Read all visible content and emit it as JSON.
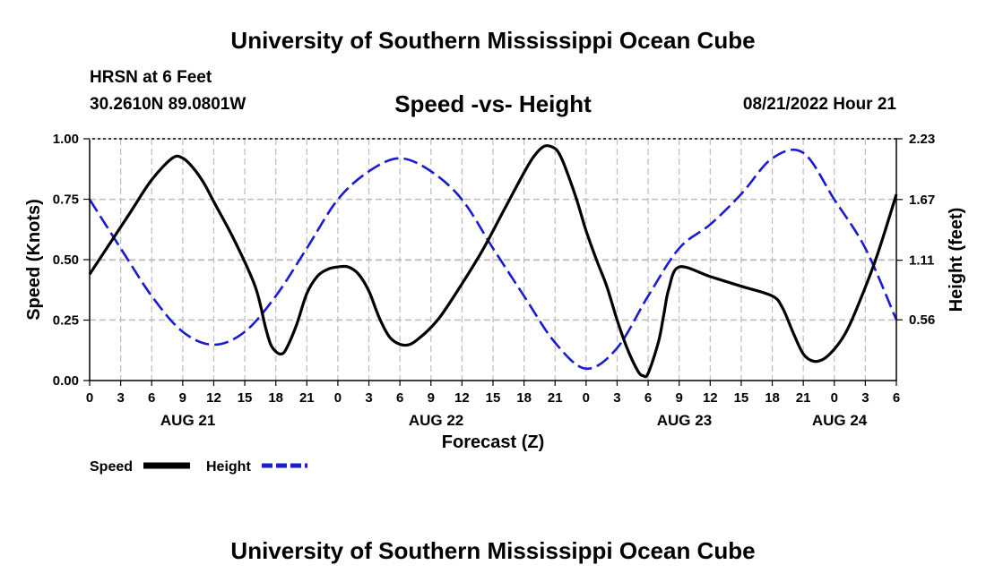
{
  "header": {
    "title": "University of Southern Mississippi Ocean Cube",
    "station": "HRSN at 6 Feet",
    "coords": "30.2610N  89.0801W",
    "subtitle": "Speed -vs- Height",
    "datetime": "08/21/2022 Hour 21"
  },
  "footer": {
    "title": "University of Southern Mississippi Ocean Cube"
  },
  "legend": {
    "speed_label": "Speed",
    "height_label": "Height"
  },
  "colors": {
    "speed": "#000000",
    "height": "#1a1ad0",
    "grid": "#bdbdbd"
  },
  "chart_data": {
    "type": "line",
    "title": "Speed -vs- Height",
    "xlabel": "Forecast (Z)",
    "ylabel": "Speed (Knots)",
    "y2label": "Height (feet)",
    "x_unit": "hours from AUG 21 00Z",
    "xlim": [
      0,
      78
    ],
    "ylim": [
      0,
      1
    ],
    "y2lim": [
      0,
      2.23
    ],
    "x_ticks": [
      0,
      3,
      6,
      9,
      12,
      15,
      18,
      21,
      24,
      27,
      30,
      33,
      36,
      39,
      42,
      45,
      48,
      51,
      54,
      57,
      60,
      63,
      66,
      69,
      72,
      75,
      78
    ],
    "x_tick_labels": [
      "0",
      "3",
      "6",
      "9",
      "12",
      "15",
      "18",
      "21",
      "0",
      "3",
      "6",
      "9",
      "12",
      "15",
      "18",
      "21",
      "0",
      "3",
      "6",
      "9",
      "12",
      "15",
      "18",
      "21",
      "0",
      "3",
      "6"
    ],
    "date_labels": [
      {
        "x": 9.5,
        "label": "AUG 21"
      },
      {
        "x": 33.5,
        "label": "AUG 22"
      },
      {
        "x": 57.5,
        "label": "AUG 23"
      },
      {
        "x": 72.5,
        "label": "AUG 24"
      }
    ],
    "y_ticks": [
      0,
      0.25,
      0.5,
      0.75,
      1
    ],
    "y_tick_labels": [
      "0.00",
      "0.25",
      "0.50",
      "0.75",
      "1.00"
    ],
    "y2_ticks": [
      0.56,
      1.11,
      1.67,
      2.23
    ],
    "y2_tick_labels": [
      "0.56",
      "1.11",
      "1.67",
      "2.23"
    ],
    "grid": true,
    "series": [
      {
        "name": "Speed",
        "axis": "left",
        "style": "solid",
        "x": [
          0,
          2,
          4,
          6,
          8,
          9,
          10,
          11,
          12,
          14,
          16,
          17,
          17.5,
          18,
          18.5,
          19,
          20,
          21,
          22,
          23,
          24,
          25,
          26,
          27,
          28,
          29,
          30,
          31,
          32,
          33,
          34,
          36,
          38,
          40,
          42,
          43,
          44,
          45,
          45.5,
          46,
          47,
          48,
          49,
          50,
          51,
          52,
          53,
          53.5,
          54,
          55,
          55.5,
          56,
          57,
          60,
          63,
          66,
          67,
          68,
          69,
          70,
          71,
          72,
          73,
          74,
          76,
          78
        ],
        "values": [
          0.44,
          0.57,
          0.7,
          0.83,
          0.92,
          0.92,
          0.88,
          0.82,
          0.74,
          0.58,
          0.39,
          0.22,
          0.15,
          0.12,
          0.11,
          0.13,
          0.23,
          0.36,
          0.43,
          0.46,
          0.47,
          0.47,
          0.44,
          0.37,
          0.26,
          0.18,
          0.15,
          0.15,
          0.18,
          0.22,
          0.27,
          0.4,
          0.54,
          0.7,
          0.86,
          0.93,
          0.97,
          0.96,
          0.93,
          0.88,
          0.76,
          0.62,
          0.5,
          0.39,
          0.25,
          0.13,
          0.04,
          0.02,
          0.03,
          0.16,
          0.27,
          0.38,
          0.47,
          0.43,
          0.39,
          0.35,
          0.3,
          0.2,
          0.11,
          0.08,
          0.09,
          0.13,
          0.19,
          0.28,
          0.5,
          0.77
        ]
      },
      {
        "name": "Height",
        "axis": "right",
        "style": "dashed",
        "x": [
          0,
          3,
          6,
          9,
          12,
          15,
          18,
          21,
          24,
          27,
          30,
          33,
          36,
          39,
          42,
          45,
          48,
          51,
          54,
          57,
          60,
          63,
          66,
          69,
          72,
          75,
          78
        ],
        "values": [
          1.67,
          1.22,
          0.78,
          0.45,
          0.33,
          0.45,
          0.78,
          1.22,
          1.67,
          1.93,
          2.05,
          1.93,
          1.67,
          1.22,
          0.78,
          0.35,
          0.11,
          0.3,
          0.78,
          1.22,
          1.44,
          1.72,
          2.05,
          2.1,
          1.67,
          1.22,
          0.56
        ]
      }
    ]
  }
}
